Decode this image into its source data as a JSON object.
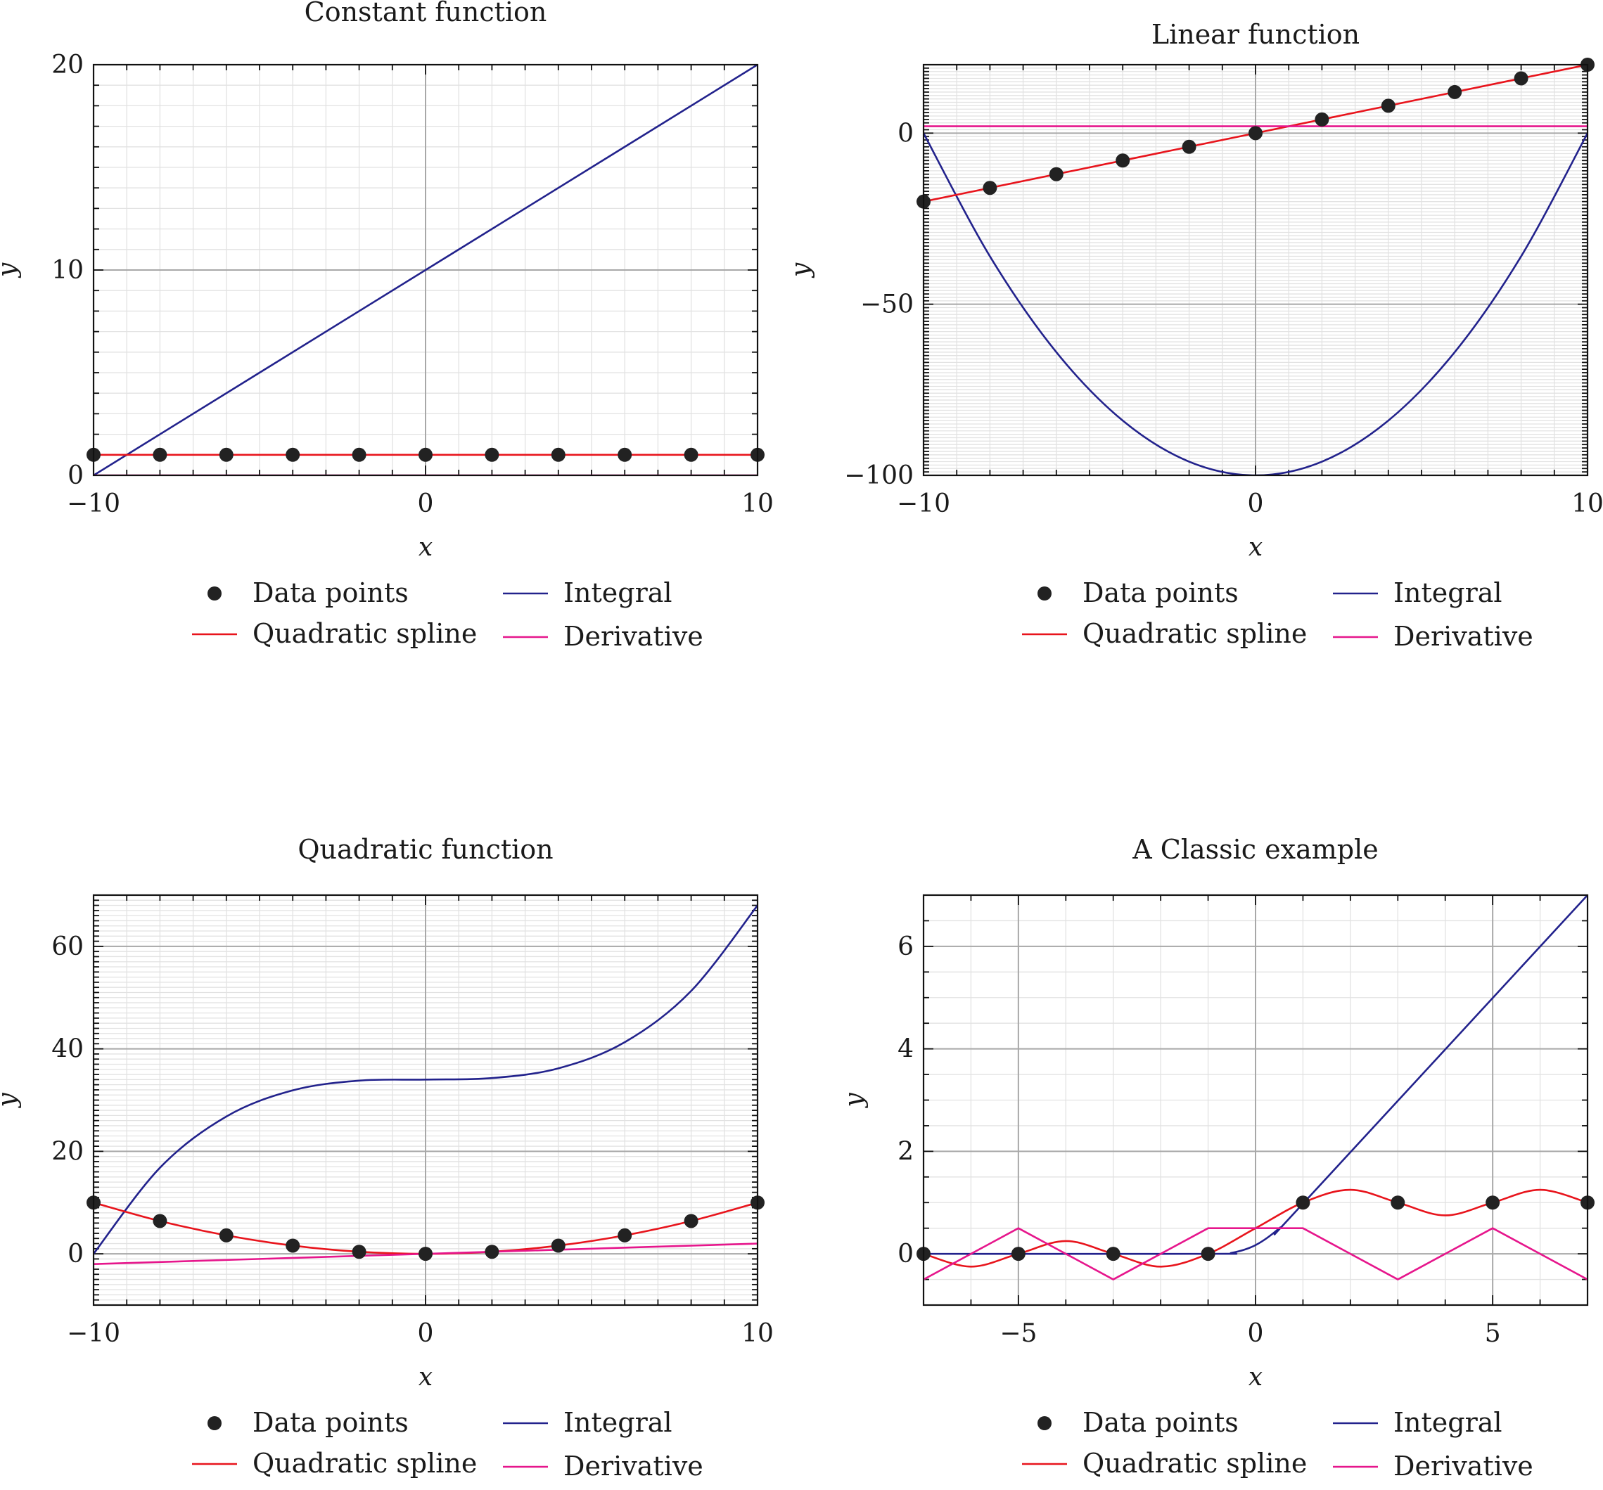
{
  "colors": {
    "data_points": "#222222",
    "quadratic_spline": "#e8141c",
    "integral": "#22228c",
    "derivative": "#e6168c",
    "major_grid": "#a8a8a8",
    "minor_grid": "#e2e2e2",
    "frame": "#111111"
  },
  "legend": {
    "items": [
      {
        "label": "Data points",
        "style": "marker"
      },
      {
        "label": "Integral",
        "style": "line"
      },
      {
        "label": "Quadratic spline",
        "style": "line"
      },
      {
        "label": "Derivative",
        "style": "line"
      }
    ],
    "placement": "below-plot"
  },
  "chart_data": [
    {
      "type": "line",
      "title": "Constant function",
      "xlabel": "x",
      "ylabel": "y",
      "xlim": [
        -10,
        10
      ],
      "ylim": [
        0,
        20
      ],
      "xticks": [
        -10,
        0,
        10
      ],
      "yticks": [
        0,
        10,
        20
      ],
      "x_minor_step": 1,
      "y_minor_step": 1,
      "grid": true,
      "points": {
        "x": [
          -10,
          -8,
          -6,
          -4,
          -2,
          0,
          2,
          4,
          6,
          8,
          10
        ],
        "y": [
          1,
          1,
          1,
          1,
          1,
          1,
          1,
          1,
          1,
          1,
          1
        ]
      },
      "series": [
        {
          "name": "Quadratic spline",
          "x": [
            -10,
            10
          ],
          "y": [
            1,
            1
          ]
        },
        {
          "name": "Integral",
          "x": [
            -10,
            10
          ],
          "y": [
            0,
            20
          ]
        },
        {
          "name": "Derivative",
          "x": [
            -10,
            10
          ],
          "y": [
            0,
            0
          ]
        }
      ]
    },
    {
      "type": "line",
      "title": "Linear function",
      "xlabel": "x",
      "ylabel": "y",
      "xlim": [
        -10,
        10
      ],
      "ylim": [
        -100,
        20
      ],
      "xticks": [
        -10,
        0,
        10
      ],
      "yticks": [
        -100,
        -50,
        0
      ],
      "x_minor_step": 1,
      "y_minor_step": 1,
      "grid": true,
      "points": {
        "x": [
          -10,
          -8,
          -6,
          -4,
          -2,
          0,
          2,
          4,
          6,
          8,
          10
        ],
        "y": [
          -20,
          -16,
          -12,
          -8,
          -4,
          0,
          4,
          8,
          12,
          16,
          20
        ]
      },
      "series": [
        {
          "name": "Quadratic spline",
          "x": [
            -10,
            10
          ],
          "y": [
            -20,
            20
          ]
        },
        {
          "name": "Integral",
          "x": [
            -10,
            -8,
            -6,
            -4,
            -2,
            0,
            2,
            4,
            6,
            8,
            10
          ],
          "y": [
            0,
            -36,
            -64,
            -84,
            -96,
            -100,
            -96,
            -84,
            -64,
            -36,
            0
          ]
        },
        {
          "name": "Derivative",
          "x": [
            -10,
            10
          ],
          "y": [
            2,
            2
          ]
        }
      ]
    },
    {
      "type": "line",
      "title": "Quadratic function",
      "xlabel": "x",
      "ylabel": "y",
      "xlim": [
        -10,
        10
      ],
      "ylim": [
        -10,
        70
      ],
      "xticks": [
        -10,
        0,
        10
      ],
      "yticks": [
        0,
        20,
        40,
        60
      ],
      "x_minor_step": 1,
      "y_minor_step": 1,
      "grid": true,
      "points": {
        "x": [
          -10,
          -8,
          -6,
          -4,
          -2,
          0,
          2,
          4,
          6,
          8,
          10
        ],
        "y": [
          10,
          6.4,
          3.6,
          1.6,
          0.4,
          0,
          0.4,
          1.6,
          3.6,
          6.4,
          10
        ]
      },
      "series": [
        {
          "name": "Quadratic spline",
          "x": [
            -10,
            -8,
            -6,
            -4,
            -2,
            0,
            2,
            4,
            6,
            8,
            10
          ],
          "y": [
            10,
            6.4,
            3.6,
            1.6,
            0.4,
            0,
            0.4,
            1.6,
            3.6,
            6.4,
            10
          ]
        },
        {
          "name": "Integral",
          "x": [
            -10,
            -8,
            -6,
            -4,
            -2,
            0,
            2,
            4,
            6,
            8,
            10
          ],
          "y": [
            0,
            16.8,
            26.8,
            31.9,
            33.8,
            34,
            34.3,
            36.2,
            41.3,
            51.3,
            68
          ]
        },
        {
          "name": "Derivative",
          "x": [
            -10,
            10
          ],
          "y": [
            -2,
            2
          ]
        }
      ]
    },
    {
      "type": "line",
      "title": "A Classic example",
      "xlabel": "x",
      "ylabel": "y",
      "xlim": [
        -7,
        7
      ],
      "ylim": [
        -1,
        7
      ],
      "xticks": [
        -5,
        0,
        5
      ],
      "yticks": [
        0,
        2,
        4,
        6
      ],
      "x_minor_step": 1,
      "y_minor_step": 0.5,
      "grid": true,
      "points": {
        "x": [
          -7,
          -5,
          -3,
          -1,
          1,
          3,
          5,
          7
        ],
        "y": [
          0,
          0,
          0,
          0,
          1,
          1,
          1,
          1
        ]
      },
      "series": [
        {
          "name": "Quadratic spline",
          "x": [
            -7,
            -6,
            -5,
            -4,
            -3,
            -2,
            -1,
            0,
            1,
            2,
            3,
            4,
            5,
            6,
            7
          ],
          "y": [
            0,
            -0.25,
            0,
            0.25,
            0,
            -0.25,
            0,
            0.5,
            1,
            1.25,
            1,
            0.75,
            1,
            1.25,
            1
          ]
        },
        {
          "name": "Integral",
          "x": [
            -7,
            -1,
            -0.5,
            0,
            0.5,
            1,
            7
          ],
          "y": [
            0,
            0,
            0.02,
            0.17,
            0.5,
            0.98,
            7
          ]
        },
        {
          "name": "Derivative",
          "x": [
            -7,
            -5,
            -3,
            -1,
            1,
            3,
            5,
            7
          ],
          "y": [
            -0.5,
            0.5,
            -0.5,
            0.5,
            0.5,
            -0.5,
            0.5,
            -0.5
          ]
        }
      ]
    }
  ]
}
